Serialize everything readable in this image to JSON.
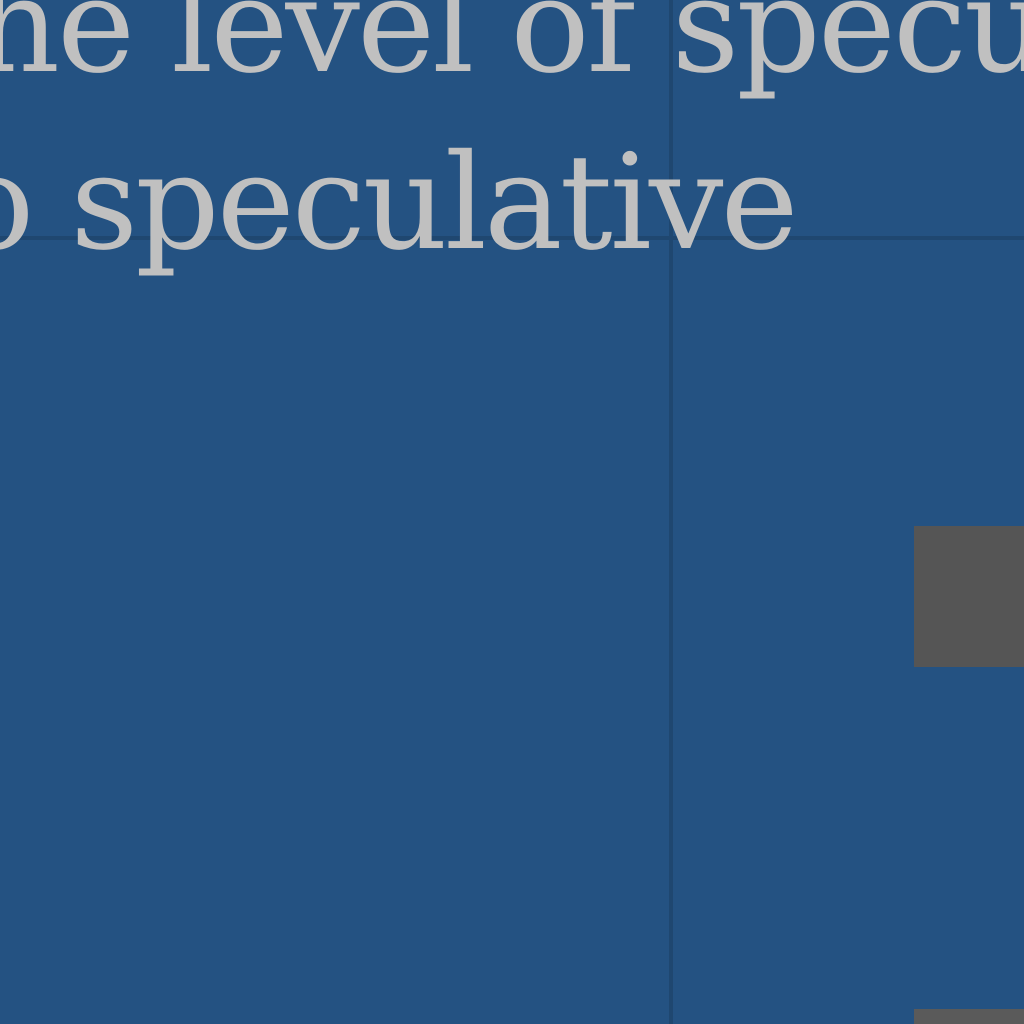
{
  "text": {
    "line1": "he level of specula",
    "line2": "o speculative"
  },
  "colors": {
    "background": "#245282",
    "text": "#c0c0c0",
    "gridline": "#1f4770",
    "block": "#555555"
  }
}
